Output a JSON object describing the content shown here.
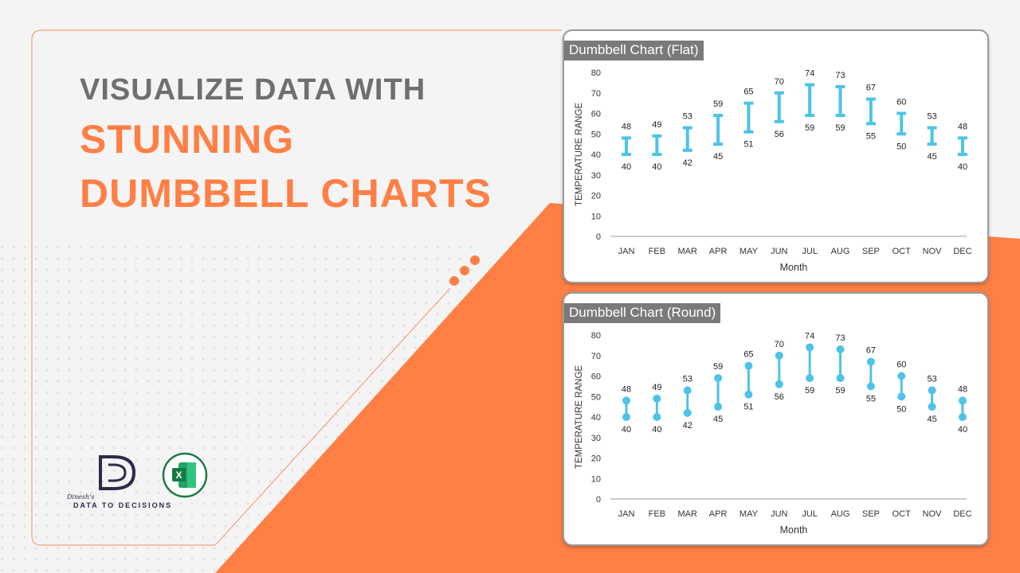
{
  "headline": {
    "line1": "VISUALIZE DATA WITH",
    "line2": "STUNNING",
    "line3": "DUMBBELL CHARTS"
  },
  "brand": {
    "signature": "Dinesh's",
    "name": "DATA TO DECISIONS",
    "excel_icon": "excel-icon",
    "excel_letter": "X"
  },
  "colors": {
    "accent": "#ff7f45",
    "series": "#4dc3e8",
    "headline_gray": "#6f6f6f"
  },
  "chart_data": [
    {
      "type": "dumbbell",
      "style": "flat",
      "title": "Dumbbell Chart (Flat)",
      "xlabel": "Month",
      "ylabel": "TEMPERATURE RANGE",
      "ylim": [
        0,
        80
      ],
      "yticks": [
        0,
        10,
        20,
        30,
        40,
        50,
        60,
        70,
        80
      ],
      "categories": [
        "JAN",
        "FEB",
        "MAR",
        "APR",
        "MAY",
        "JUN",
        "JUL",
        "AUG",
        "SEP",
        "OCT",
        "NOV",
        "DEC"
      ],
      "low": [
        40,
        40,
        42,
        45,
        51,
        56,
        59,
        59,
        55,
        50,
        45,
        40
      ],
      "high": [
        48,
        49,
        53,
        59,
        65,
        70,
        74,
        73,
        67,
        60,
        53,
        48
      ]
    },
    {
      "type": "dumbbell",
      "style": "round",
      "title": "Dumbbell Chart (Round)",
      "xlabel": "Month",
      "ylabel": "TEMPERATURE RANGE",
      "ylim": [
        0,
        80
      ],
      "yticks": [
        0,
        10,
        20,
        30,
        40,
        50,
        60,
        70,
        80
      ],
      "categories": [
        "JAN",
        "FEB",
        "MAR",
        "APR",
        "MAY",
        "JUN",
        "JUL",
        "AUG",
        "SEP",
        "OCT",
        "NOV",
        "DEC"
      ],
      "low": [
        40,
        40,
        42,
        45,
        51,
        56,
        59,
        59,
        55,
        50,
        45,
        40
      ],
      "high": [
        48,
        49,
        53,
        59,
        65,
        70,
        74,
        73,
        67,
        60,
        53,
        48
      ]
    }
  ]
}
